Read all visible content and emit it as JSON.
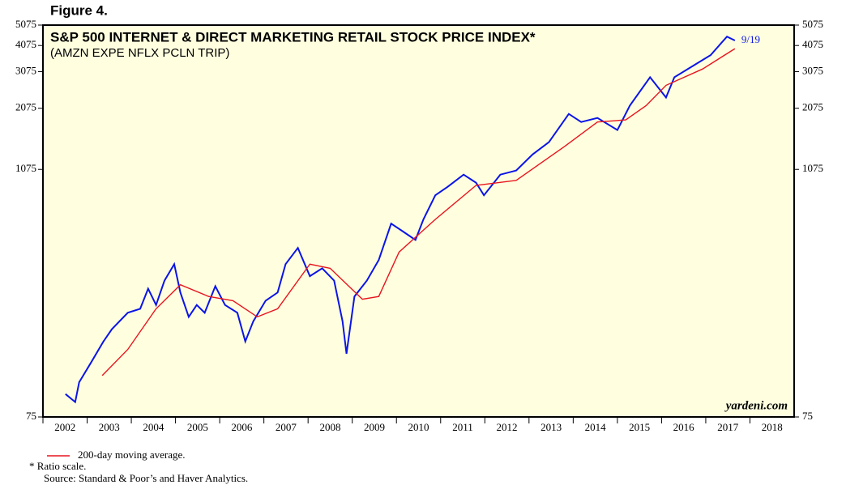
{
  "chart_data": {
    "type": "line",
    "figure_label": "Figure 4.",
    "title": "S&P 500 INTERNET & DIRECT MARKETING RETAIL STOCK PRICE INDEX*",
    "subtitle": "(AMZN EXPE NFLX PCLN TRIP)",
    "log_scale": true,
    "ylim": [
      75,
      5075
    ],
    "yticks": [
      75,
      1075,
      2075,
      3075,
      4075,
      5075
    ],
    "xlim": [
      2002,
      2019
    ],
    "xticks": [
      2002,
      2003,
      2004,
      2005,
      2006,
      2007,
      2008,
      2009,
      2010,
      2011,
      2012,
      2013,
      2014,
      2015,
      2016,
      2017,
      2018
    ],
    "series": [
      {
        "color": "#0a14e6",
        "x": [
          2002.51,
          2002.73,
          2002.82,
          2003.1,
          2003.37,
          2003.56,
          2003.92,
          2004.2,
          2004.38,
          2004.56,
          2004.75,
          2004.97,
          2005.11,
          2005.3,
          2005.48,
          2005.66,
          2005.9,
          2006.12,
          2006.4,
          2006.58,
          2006.76,
          2007.04,
          2007.31,
          2007.49,
          2007.77,
          2008.04,
          2008.32,
          2008.59,
          2008.78,
          2008.87,
          2009.05,
          2009.33,
          2009.6,
          2009.88,
          2010.15,
          2010.43,
          2010.61,
          2010.88,
          2011.16,
          2011.52,
          2011.8,
          2011.98,
          2012.35,
          2012.71,
          2013.08,
          2013.45,
          2013.9,
          2014.18,
          2014.55,
          2015.0,
          2015.28,
          2015.74,
          2016.1,
          2016.29,
          2016.74,
          2017.11,
          2017.48,
          2017.66
        ],
        "values": [
          96,
          88,
          109,
          136,
          169,
          193,
          230,
          240,
          298,
          250,
          325,
          388,
          286,
          220,
          250,
          230,
          306,
          250,
          230,
          169,
          210,
          262,
          286,
          388,
          462,
          341,
          371,
          325,
          210,
          148,
          274,
          325,
          406,
          600,
          551,
          503,
          628,
          814,
          892,
          1016,
          932,
          814,
          1016,
          1062,
          1262,
          1441,
          1952,
          1790,
          1870,
          1642,
          2133,
          2896,
          2330,
          2896,
          3300,
          3675,
          4486,
          4300
        ]
      },
      {
        "name": "200-day moving average.",
        "color": "#e8141e",
        "x": [
          2003.34,
          2003.92,
          2004.56,
          2005.11,
          2005.75,
          2006.3,
          2006.85,
          2007.31,
          2008.04,
          2008.5,
          2009.23,
          2009.6,
          2010.06,
          2010.88,
          2011.8,
          2012.71,
          2013.81,
          2014.55,
          2015.19,
          2015.65,
          2016.1,
          2016.93,
          2017.66
        ],
        "values": [
          117,
          155,
          240,
          311,
          274,
          262,
          220,
          240,
          388,
          371,
          266,
          274,
          442,
          628,
          905,
          955,
          1378,
          1790,
          1830,
          2133,
          2654,
          3165,
          3940
        ]
      }
    ],
    "end_label": "9/19",
    "watermark": "yardeni.com",
    "notes": [
      "* Ratio scale.",
      "Source: Standard & Poor’s and Haver Analytics."
    ]
  }
}
